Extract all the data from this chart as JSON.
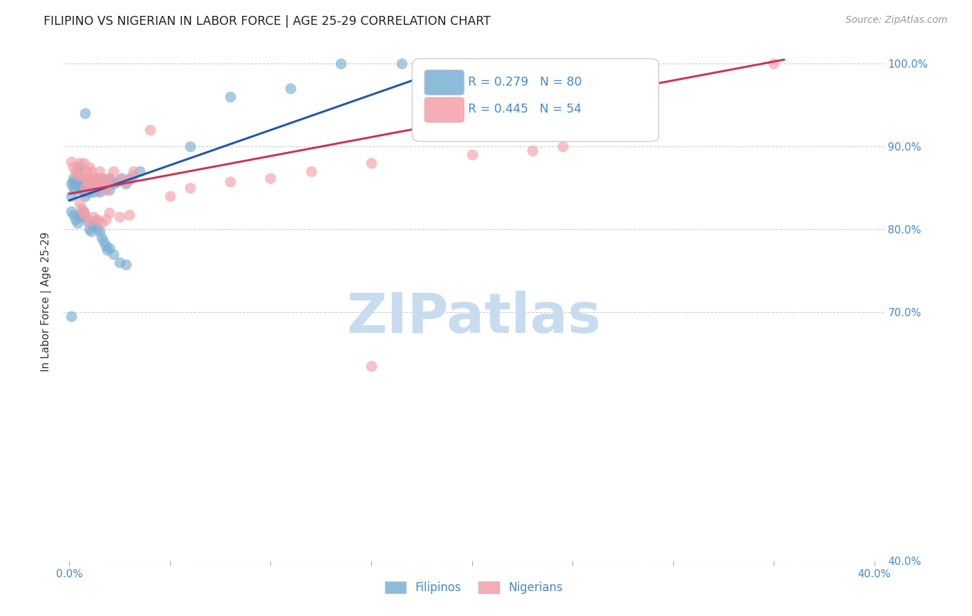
{
  "title": "FILIPINO VS NIGERIAN IN LABOR FORCE | AGE 25-29 CORRELATION CHART",
  "source": "Source: ZipAtlas.com",
  "ylabel": "In Labor Force | Age 25-29",
  "xlim": [
    -0.003,
    0.405
  ],
  "ylim": [
    0.4,
    1.025
  ],
  "yticks": [
    0.4,
    0.7,
    0.8,
    0.9,
    1.0
  ],
  "ytick_labels": [
    "40.0%",
    "70.0%",
    "80.0%",
    "90.0%",
    "100.0%"
  ],
  "xticks": [
    0.0,
    0.05,
    0.1,
    0.15,
    0.2,
    0.25,
    0.3,
    0.35,
    0.4
  ],
  "xtick_labels": [
    "0.0%",
    "",
    "",
    "",
    "",
    "",
    "",
    "",
    "40.0%"
  ],
  "r_filipino": 0.279,
  "n_filipino": 80,
  "r_nigerian": 0.445,
  "n_nigerian": 54,
  "filipino_color": "#7BAFD4",
  "nigerian_color": "#F4A0A8",
  "trend_filipino_color": "#2255AA",
  "trend_nigerian_color": "#CC3355",
  "axis_color": "#4488CC",
  "grid_color": "#CCCCCC",
  "watermark_color": "#C8DCF0",
  "watermark_text": "ZIPatlas",
  "legend_box_color": "#EEEEEE",
  "fil_scatter_x": [
    0.001,
    0.001,
    0.002,
    0.002,
    0.002,
    0.003,
    0.003,
    0.004,
    0.004,
    0.005,
    0.005,
    0.005,
    0.006,
    0.006,
    0.006,
    0.007,
    0.007,
    0.007,
    0.008,
    0.008,
    0.008,
    0.009,
    0.009,
    0.009,
    0.01,
    0.01,
    0.01,
    0.011,
    0.011,
    0.012,
    0.012,
    0.013,
    0.013,
    0.014,
    0.014,
    0.015,
    0.015,
    0.016,
    0.017,
    0.018,
    0.019,
    0.02,
    0.02,
    0.022,
    0.024,
    0.026,
    0.028,
    0.03,
    0.032,
    0.035,
    0.001,
    0.002,
    0.003,
    0.004,
    0.005,
    0.006,
    0.007,
    0.008,
    0.009,
    0.01,
    0.011,
    0.012,
    0.013,
    0.014,
    0.015,
    0.016,
    0.017,
    0.018,
    0.019,
    0.02,
    0.022,
    0.025,
    0.028,
    0.06,
    0.08,
    0.11,
    0.135,
    0.165,
    0.001,
    0.008
  ],
  "fil_scatter_y": [
    0.855,
    0.84,
    0.858,
    0.85,
    0.862,
    0.855,
    0.848,
    0.862,
    0.87,
    0.858,
    0.85,
    0.875,
    0.848,
    0.852,
    0.862,
    0.845,
    0.855,
    0.862,
    0.85,
    0.858,
    0.84,
    0.855,
    0.862,
    0.848,
    0.858,
    0.845,
    0.862,
    0.85,
    0.855,
    0.845,
    0.858,
    0.85,
    0.862,
    0.848,
    0.855,
    0.858,
    0.845,
    0.862,
    0.855,
    0.85,
    0.858,
    0.862,
    0.848,
    0.855,
    0.858,
    0.862,
    0.855,
    0.86,
    0.865,
    0.87,
    0.822,
    0.818,
    0.812,
    0.808,
    0.815,
    0.82,
    0.822,
    0.815,
    0.81,
    0.8,
    0.798,
    0.805,
    0.81,
    0.802,
    0.798,
    0.79,
    0.785,
    0.78,
    0.775,
    0.778,
    0.77,
    0.76,
    0.758,
    0.9,
    0.96,
    0.97,
    1.0,
    1.0,
    0.695,
    0.94
  ],
  "nig_scatter_x": [
    0.001,
    0.002,
    0.003,
    0.004,
    0.005,
    0.006,
    0.007,
    0.008,
    0.008,
    0.009,
    0.009,
    0.01,
    0.01,
    0.011,
    0.012,
    0.012,
    0.013,
    0.014,
    0.015,
    0.015,
    0.016,
    0.017,
    0.018,
    0.019,
    0.02,
    0.022,
    0.025,
    0.028,
    0.03,
    0.032,
    0.005,
    0.006,
    0.007,
    0.008,
    0.01,
    0.012,
    0.014,
    0.016,
    0.018,
    0.02,
    0.025,
    0.03,
    0.04,
    0.05,
    0.06,
    0.08,
    0.1,
    0.12,
    0.15,
    0.2,
    0.23,
    0.245,
    0.35,
    0.15
  ],
  "nig_scatter_y": [
    0.882,
    0.875,
    0.87,
    0.865,
    0.88,
    0.865,
    0.88,
    0.85,
    0.862,
    0.87,
    0.858,
    0.875,
    0.862,
    0.87,
    0.852,
    0.858,
    0.862,
    0.848,
    0.855,
    0.87,
    0.862,
    0.858,
    0.848,
    0.855,
    0.862,
    0.87,
    0.86,
    0.858,
    0.862,
    0.87,
    0.832,
    0.825,
    0.82,
    0.818,
    0.81,
    0.815,
    0.812,
    0.808,
    0.812,
    0.82,
    0.815,
    0.818,
    0.92,
    0.84,
    0.85,
    0.858,
    0.862,
    0.87,
    0.88,
    0.89,
    0.895,
    0.9,
    1.0,
    0.635
  ],
  "trend_fil_x0": 0.0,
  "trend_fil_x1": 0.2,
  "trend_fil_y0": 0.835,
  "trend_fil_y1": 1.005,
  "trend_nig_x0": 0.0,
  "trend_nig_x1": 0.355,
  "trend_nig_y0": 0.843,
  "trend_nig_y1": 1.005
}
